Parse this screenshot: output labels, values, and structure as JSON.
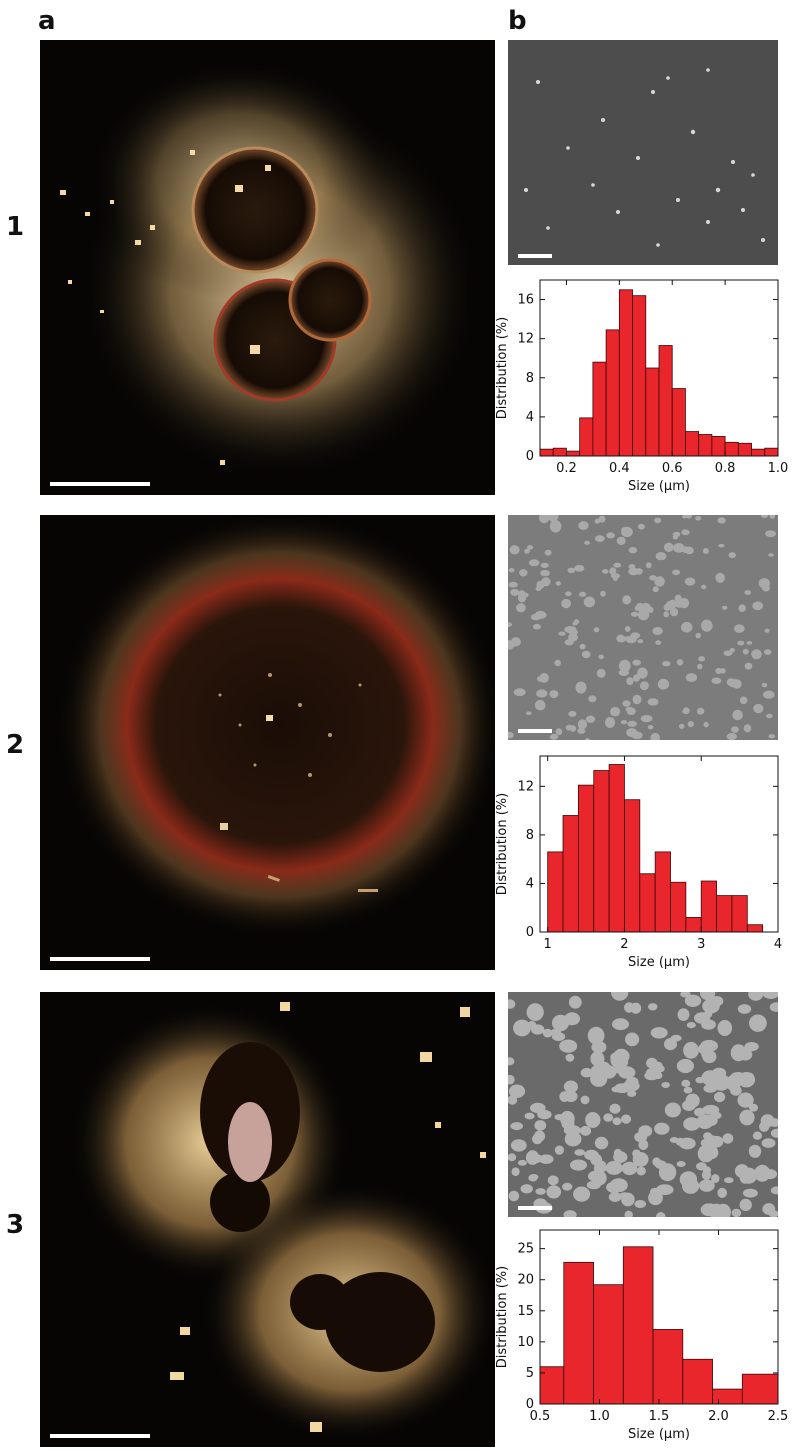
{
  "panels": {
    "a": "a",
    "b": "b"
  },
  "rows": [
    {
      "label": "1",
      "chart_data": {
        "type": "bar",
        "xlabel": "Size (µm)",
        "ylabel": "Distribution (%)",
        "xlim": [
          0.1,
          1.0
        ],
        "ylim": [
          0,
          18
        ],
        "xticks": [
          0.2,
          0.4,
          0.6,
          0.8,
          1.0
        ],
        "xtick_labels": [
          "0.2",
          "0.4",
          "0.6",
          "0.8",
          "1.0"
        ],
        "yticks": [
          0,
          4,
          8,
          12,
          16
        ],
        "ytick_labels": [
          "0",
          "4",
          "8",
          "12",
          "16"
        ],
        "bin_edges": [
          0.1,
          0.15,
          0.2,
          0.25,
          0.3,
          0.35,
          0.4,
          0.45,
          0.5,
          0.55,
          0.6,
          0.65,
          0.7,
          0.75,
          0.8,
          0.85,
          0.9,
          0.95,
          1.0
        ],
        "values": [
          0.7,
          0.8,
          0.5,
          3.9,
          9.6,
          12.9,
          17.0,
          16.4,
          9.0,
          11.3,
          6.9,
          2.5,
          2.2,
          2.0,
          1.4,
          1.3,
          0.7,
          0.8
        ],
        "bar_color": "#e8262b"
      }
    },
    {
      "label": "2",
      "chart_data": {
        "type": "bar",
        "xlabel": "Size (µm)",
        "ylabel": "Distribution (%)",
        "xlim": [
          0.9,
          4.0
        ],
        "ylim": [
          0,
          14.5
        ],
        "xticks": [
          1,
          2,
          3,
          4
        ],
        "xtick_labels": [
          "1",
          "2",
          "3",
          "4"
        ],
        "yticks": [
          0,
          4,
          8,
          12
        ],
        "ytick_labels": [
          "0",
          "4",
          "8",
          "12"
        ],
        "bin_edges": [
          1.0,
          1.2,
          1.4,
          1.6,
          1.8,
          2.0,
          2.2,
          2.4,
          2.6,
          2.8,
          3.0,
          3.2,
          3.4,
          3.6,
          3.8
        ],
        "values": [
          6.6,
          9.6,
          12.1,
          13.3,
          13.8,
          10.9,
          4.8,
          6.6,
          4.1,
          1.2,
          4.2,
          3.0,
          3.0,
          0.6
        ],
        "bar_color": "#e8262b"
      }
    },
    {
      "label": "3",
      "chart_data": {
        "type": "bar",
        "xlabel": "Size (µm)",
        "ylabel": "Distribution (%)",
        "xlim": [
          0.5,
          2.5
        ],
        "ylim": [
          0,
          28
        ],
        "xticks": [
          0.5,
          1.0,
          1.5,
          2.0,
          2.5
        ],
        "xtick_labels": [
          "0.5",
          "1.0",
          "1.5",
          "2.0",
          "2.5"
        ],
        "yticks": [
          0,
          5,
          10,
          15,
          20,
          25
        ],
        "ytick_labels": [
          "0",
          "5",
          "10",
          "15",
          "20",
          "25"
        ],
        "bin_edges": [
          0.5,
          0.7,
          0.95,
          1.2,
          1.45,
          1.7,
          1.95,
          2.2,
          2.5
        ],
        "values": [
          6.0,
          22.8,
          19.2,
          25.3,
          12.0,
          7.2,
          2.4,
          4.8
        ],
        "bar_color": "#e8262b"
      }
    }
  ]
}
